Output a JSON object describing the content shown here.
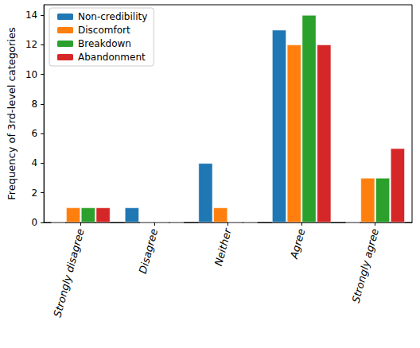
{
  "chart_data": {
    "type": "bar",
    "y_label": "Frequency of 3rd-level categories",
    "categories": [
      "Strongly disagree",
      "Disagree",
      "Neither",
      "Agree",
      "Strongly agree"
    ],
    "series": [
      {
        "name": "Non-credibility",
        "color": "#1f77b4",
        "values": [
          0,
          1,
          4,
          13,
          0
        ]
      },
      {
        "name": "Discomfort",
        "color": "#ff7f0e",
        "values": [
          1,
          0,
          1,
          12,
          3
        ]
      },
      {
        "name": "Breakdown",
        "color": "#2ca02c",
        "values": [
          1,
          0,
          0,
          14,
          3
        ]
      },
      {
        "name": "Abandonment",
        "color": "#d62728",
        "values": [
          1,
          0,
          0,
          12,
          5
        ]
      }
    ],
    "ylim": [
      0,
      14.7
    ],
    "yticks": [
      0,
      2,
      4,
      6,
      8,
      10,
      12,
      14
    ],
    "grid": false,
    "legend": "upper left"
  }
}
